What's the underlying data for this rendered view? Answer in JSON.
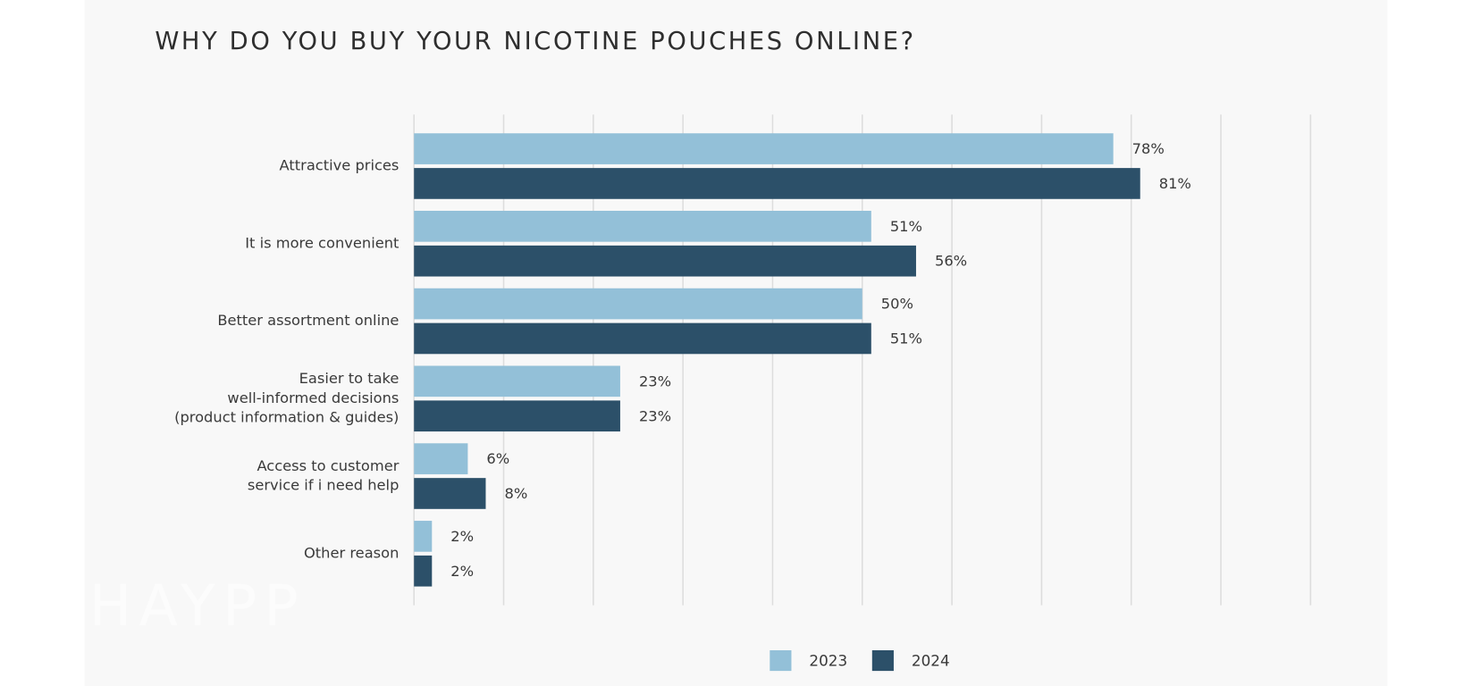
{
  "chart_data": {
    "type": "hbar",
    "title": "WHY DO YOU BUY YOUR NICOTINE POUCHES ONLINE?",
    "watermark": "HAYPP",
    "categories": [
      [
        "Attractive prices"
      ],
      [
        "It is more convenient"
      ],
      [
        "Better assortment online"
      ],
      [
        "Easier to take",
        "well-informed decisions",
        "(product information & guides)"
      ],
      [
        "Access to customer",
        "service if i need help"
      ],
      [
        "Other reason"
      ]
    ],
    "series": [
      {
        "name": "2023",
        "color": "#93c0d8",
        "values": [
          78,
          51,
          50,
          23,
          6,
          2
        ],
        "value_labels": [
          "78%",
          "51%",
          "50%",
          "23%",
          "6%",
          "2%"
        ]
      },
      {
        "name": "2024",
        "color": "#2c5069",
        "values": [
          81,
          56,
          51,
          23,
          8,
          2
        ],
        "value_labels": [
          "81%",
          "56%",
          "51%",
          "23%",
          "8%",
          "2%"
        ]
      }
    ],
    "xlim": [
      0,
      100
    ],
    "xticks": [
      0,
      10,
      20,
      30,
      40,
      50,
      60,
      70,
      80,
      90,
      100
    ],
    "grid": true,
    "legend": "bottom"
  }
}
